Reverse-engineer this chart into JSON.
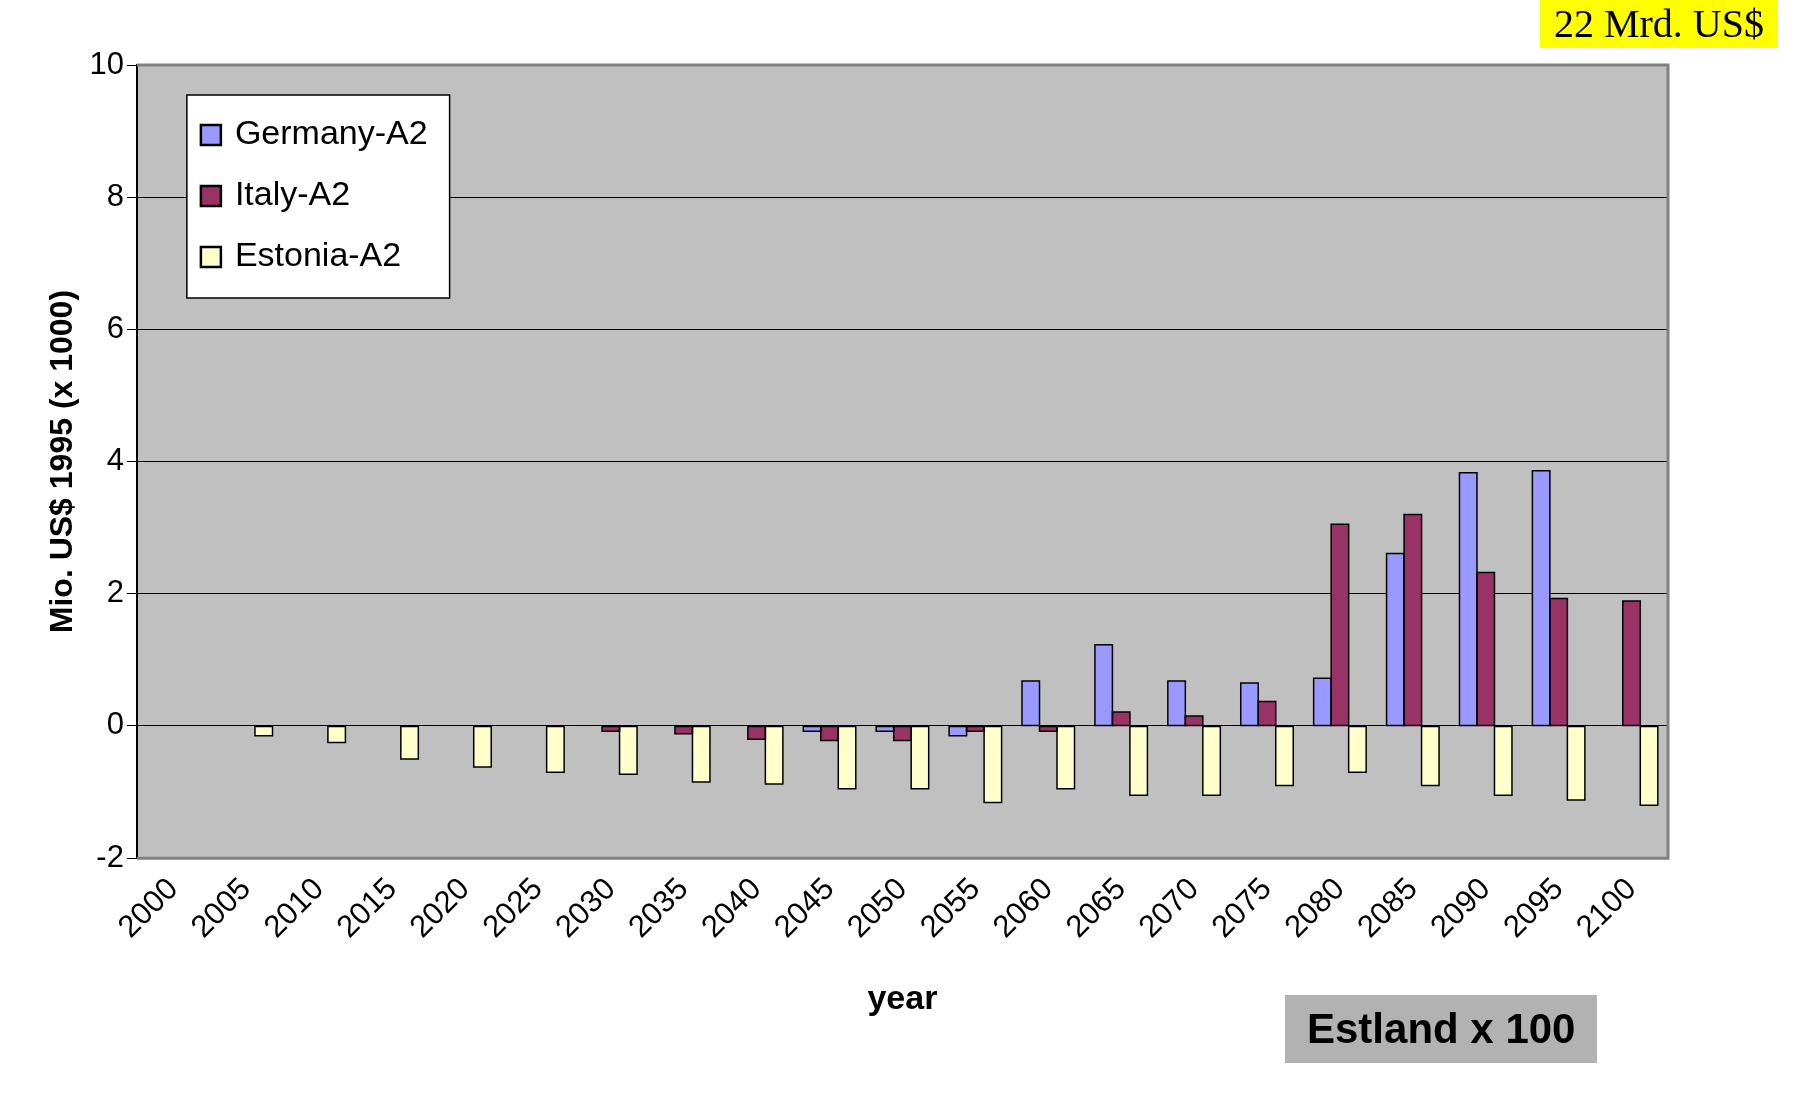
{
  "chart_data": {
    "type": "bar",
    "xlabel": "year",
    "ylabel": "Mio. US$ 1995 (x 1000)",
    "categories": [
      "2000",
      "2005",
      "2010",
      "2015",
      "2020",
      "2025",
      "2030",
      "2035",
      "2040",
      "2045",
      "2050",
      "2055",
      "2060",
      "2065",
      "2070",
      "2075",
      "2080",
      "2085",
      "2090",
      "2095",
      "2100"
    ],
    "series": [
      {
        "name": "Germany-A2",
        "color": "#9999ff",
        "values": [
          null,
          null,
          null,
          null,
          null,
          null,
          null,
          null,
          null,
          -0.08,
          -0.08,
          -0.15,
          0.68,
          1.23,
          0.68,
          0.65,
          0.72,
          2.61,
          3.83,
          3.86,
          null
        ]
      },
      {
        "name": "Italy-A2",
        "color": "#993366",
        "values": [
          null,
          null,
          null,
          null,
          null,
          null,
          -0.08,
          -0.12,
          -0.2,
          -0.22,
          -0.22,
          -0.08,
          -0.08,
          0.21,
          0.15,
          0.37,
          3.05,
          3.2,
          2.32,
          1.93,
          1.89
        ]
      },
      {
        "name": "Estonia-A2",
        "color": "#ffffcc",
        "values": [
          null,
          -0.15,
          -0.25,
          -0.5,
          -0.62,
          -0.7,
          -0.73,
          -0.85,
          -0.88,
          -0.95,
          -0.95,
          -1.16,
          -0.95,
          -1.05,
          -1.05,
          -0.9,
          -0.7,
          -0.9,
          -1.05,
          -1.12,
          -1.2
        ]
      }
    ],
    "ylim": [
      -2,
      10
    ],
    "yticks": [
      -2,
      0,
      2,
      4,
      6,
      8,
      10
    ],
    "grid": "y",
    "legend": "top left",
    "annotations": [
      "22 Mrd. US$",
      "Estland x 100"
    ]
  }
}
